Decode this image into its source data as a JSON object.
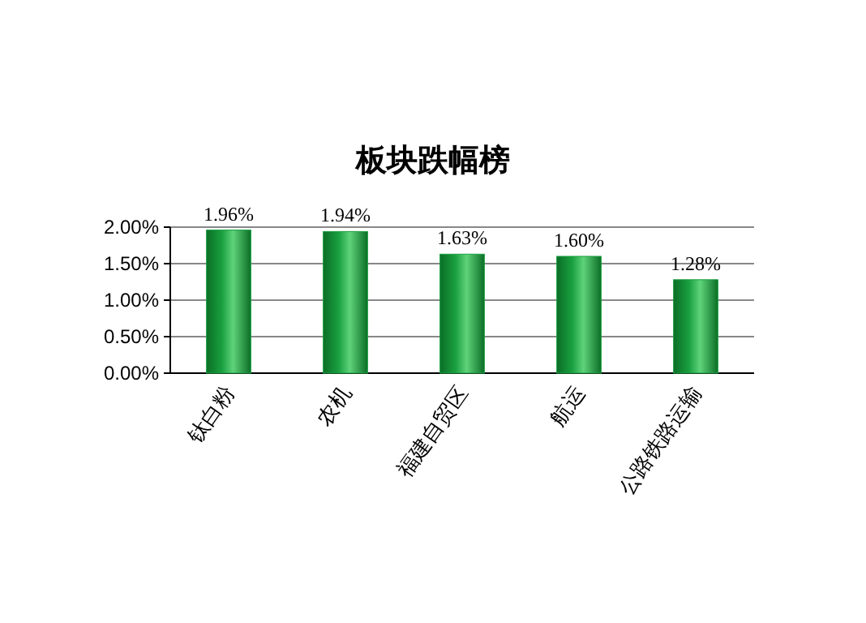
{
  "chart_data": {
    "type": "bar",
    "title": "板块跌幅榜",
    "categories": [
      "钛白粉",
      "农机",
      "福建自贸区",
      "航运",
      "公路铁路运输"
    ],
    "values": [
      1.96,
      1.94,
      1.63,
      1.6,
      1.28
    ],
    "value_labels": [
      "1.96%",
      "1.94%",
      "1.63%",
      "1.60%",
      "1.28%"
    ],
    "color": "#1aa040",
    "ylim": [
      0,
      2
    ],
    "yticks": [
      {
        "value": 0,
        "label": "0.00%"
      },
      {
        "value": 0.5,
        "label": "0.50%"
      },
      {
        "value": 1,
        "label": "1.00%"
      },
      {
        "value": 1.5,
        "label": "1.50%"
      },
      {
        "value": 2,
        "label": "2.00%"
      }
    ],
    "grid": "y"
  }
}
